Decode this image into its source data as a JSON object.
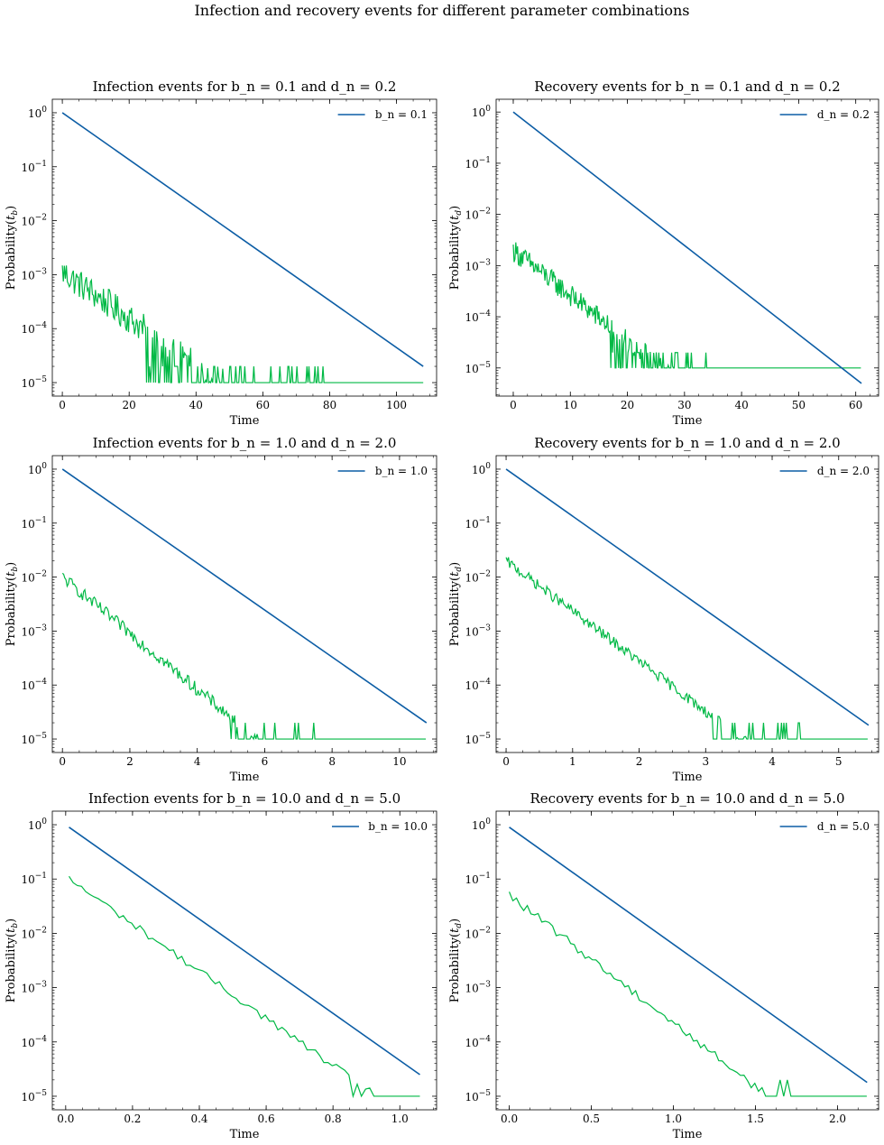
{
  "figure": {
    "suptitle": "Infection and recovery events for different parameter combinations"
  },
  "colors": {
    "theory": "#0C5DA5",
    "empirical": "#00B945"
  },
  "chart_data": [
    {
      "type": "line",
      "title": "Infection events for b_n = 0.1 and d_n = 0.2",
      "xlabel": "Time",
      "ylabel": "Probability(t_b)",
      "yscale": "log",
      "xlim": [
        -3,
        112
      ],
      "ylim_log10": [
        -5.25,
        0.25
      ],
      "xticks": [
        0,
        20,
        40,
        60,
        80,
        100
      ],
      "xticklabels": [
        "0",
        "20",
        "40",
        "60",
        "80",
        "100"
      ],
      "yticks": [
        -5,
        -4,
        -3,
        -2,
        -1,
        0
      ],
      "legend_label": "b_n = 0.1",
      "legend_loc": "upper right",
      "series": [
        {
          "role": "theory",
          "name": "b_n = 0.1",
          "x": [
            0,
            108
          ],
          "y": [
            1.0,
            2e-05
          ]
        },
        {
          "role": "empirical",
          "x_start": 0,
          "x_end": 108,
          "y0_log10": -2.95,
          "slope_per_unit": -0.043,
          "noise": 0.28,
          "floor": 1e-05,
          "step": 0.3,
          "drop_x": 25,
          "spike_end": 78,
          "spike_level": 2e-05
        }
      ]
    },
    {
      "type": "line",
      "title": "Recovery events for b_n = 0.1 and d_n = 0.2",
      "xlabel": "Time",
      "ylabel": "Probability(t_d)",
      "yscale": "log",
      "xlim": [
        -3,
        64
      ],
      "ylim_log10": [
        -5.55,
        0.25
      ],
      "xticks": [
        0,
        10,
        20,
        30,
        40,
        50,
        60
      ],
      "xticklabels": [
        "0",
        "10",
        "20",
        "30",
        "40",
        "50",
        "60"
      ],
      "yticks": [
        -5,
        -4,
        -3,
        -2,
        -1,
        0
      ],
      "legend_label": "d_n = 0.2",
      "legend_loc": "upper right",
      "series": [
        {
          "role": "theory",
          "name": "d_n = 0.2",
          "x": [
            0,
            61
          ],
          "y": [
            1.0,
            5e-06
          ]
        },
        {
          "role": "empirical",
          "x_start": 0,
          "x_end": 61,
          "y0_log10": -2.7,
          "slope_per_unit": -0.088,
          "noise": 0.22,
          "floor": 1e-05,
          "step": 0.15,
          "drop_x": 17,
          "spike_end": 38,
          "spike_level": 2e-05
        }
      ]
    },
    {
      "type": "line",
      "title": "Infection events for b_n = 1.0 and d_n = 2.0",
      "xlabel": "Time",
      "ylabel": "Probability(t_b)",
      "yscale": "log",
      "xlim": [
        -0.3,
        11.1
      ],
      "ylim_log10": [
        -5.25,
        0.25
      ],
      "xticks": [
        0,
        2,
        4,
        6,
        8,
        10
      ],
      "xticklabels": [
        "0",
        "2",
        "4",
        "6",
        "8",
        "10"
      ],
      "yticks": [
        -5,
        -4,
        -3,
        -2,
        -1,
        0
      ],
      "legend_label": "b_n = 1.0",
      "legend_loc": "upper right",
      "series": [
        {
          "role": "theory",
          "name": "b_n = 1.0",
          "x": [
            0,
            10.8
          ],
          "y": [
            1.0,
            2e-05
          ]
        },
        {
          "role": "empirical",
          "x_start": 0,
          "x_end": 10.8,
          "y0_log10": -2.0,
          "slope_per_unit": -0.52,
          "noise": 0.12,
          "floor": 1e-05,
          "step": 0.035,
          "drop_x": 5,
          "spike_end": 8.4,
          "spike_level": 2e-05
        }
      ]
    },
    {
      "type": "line",
      "title": "Recovery events for b_n = 1.0 and d_n = 2.0",
      "xlabel": "Time",
      "ylabel": "Probability(t_d)",
      "yscale": "log",
      "xlim": [
        -0.15,
        5.6
      ],
      "ylim_log10": [
        -5.25,
        0.25
      ],
      "xticks": [
        0,
        1,
        2,
        3,
        4,
        5
      ],
      "xticklabels": [
        "0",
        "1",
        "2",
        "3",
        "4",
        "5"
      ],
      "yticks": [
        -5,
        -4,
        -3,
        -2,
        -1,
        0
      ],
      "legend_label": "d_n = 2.0",
      "legend_loc": "upper right",
      "series": [
        {
          "role": "theory",
          "name": "d_n = 2.0",
          "x": [
            0,
            5.45
          ],
          "y": [
            1.0,
            1.8e-05
          ]
        },
        {
          "role": "empirical",
          "x_start": 0,
          "x_end": 5.45,
          "y0_log10": -1.7,
          "slope_per_unit": -0.93,
          "noise": 0.1,
          "floor": 1e-05,
          "step": 0.018,
          "drop_x": 3.1,
          "spike_end": 4.5,
          "spike_level": 2e-05
        }
      ]
    },
    {
      "type": "line",
      "title": "Infection events for b_n = 10.0 and d_n = 5.0",
      "xlabel": "Time",
      "ylabel": "Probability(t_b)",
      "yscale": "log",
      "xlim": [
        -0.04,
        1.11
      ],
      "ylim_log10": [
        -5.25,
        0.25
      ],
      "xticks": [
        0,
        0.2,
        0.4,
        0.6,
        0.8,
        1.0
      ],
      "xticklabels": [
        "0.0",
        "0.2",
        "0.4",
        "0.6",
        "0.8",
        "1.0"
      ],
      "yticks": [
        -5,
        -4,
        -3,
        -2,
        -1,
        0
      ],
      "legend_label": "b_n = 10.0",
      "legend_loc": "upper right",
      "series": [
        {
          "role": "theory",
          "name": "b_n = 10.0",
          "x": [
            0.01,
            1.06
          ],
          "y": [
            0.9,
            2.5e-05
          ]
        },
        {
          "role": "empirical",
          "x_start": 0.01,
          "x_end": 1.06,
          "y0_log10": -1.0,
          "slope_per_unit": -4.35,
          "noise": 0.07,
          "floor": 1e-05,
          "step": 0.0125,
          "drop_x": 0.85,
          "spike_end": 0.95,
          "spike_level": 2e-05
        }
      ]
    },
    {
      "type": "line",
      "title": "Recovery events for b_n = 10.0 and d_n = 5.0",
      "xlabel": "Time",
      "ylabel": "Probability(t_d)",
      "yscale": "log",
      "xlim": [
        -0.08,
        2.25
      ],
      "ylim_log10": [
        -5.25,
        0.25
      ],
      "xticks": [
        0,
        0.5,
        1.0,
        1.5,
        2.0
      ],
      "xticklabels": [
        "0.0",
        "0.5",
        "1.0",
        "1.5",
        "2.0"
      ],
      "yticks": [
        -5,
        -4,
        -3,
        -2,
        -1,
        0
      ],
      "legend_label": "d_n = 5.0",
      "legend_loc": "upper right",
      "series": [
        {
          "role": "theory",
          "name": "d_n = 5.0",
          "x": [
            0.0,
            2.18
          ],
          "y": [
            0.9,
            1.8e-05
          ]
        },
        {
          "role": "empirical",
          "x_start": 0.0,
          "x_end": 2.18,
          "y0_log10": -1.3,
          "slope_per_unit": -2.35,
          "noise": 0.08,
          "floor": 1e-05,
          "step": 0.022,
          "drop_x": 1.5,
          "spike_end": 1.7,
          "spike_level": 2e-05
        }
      ]
    }
  ]
}
